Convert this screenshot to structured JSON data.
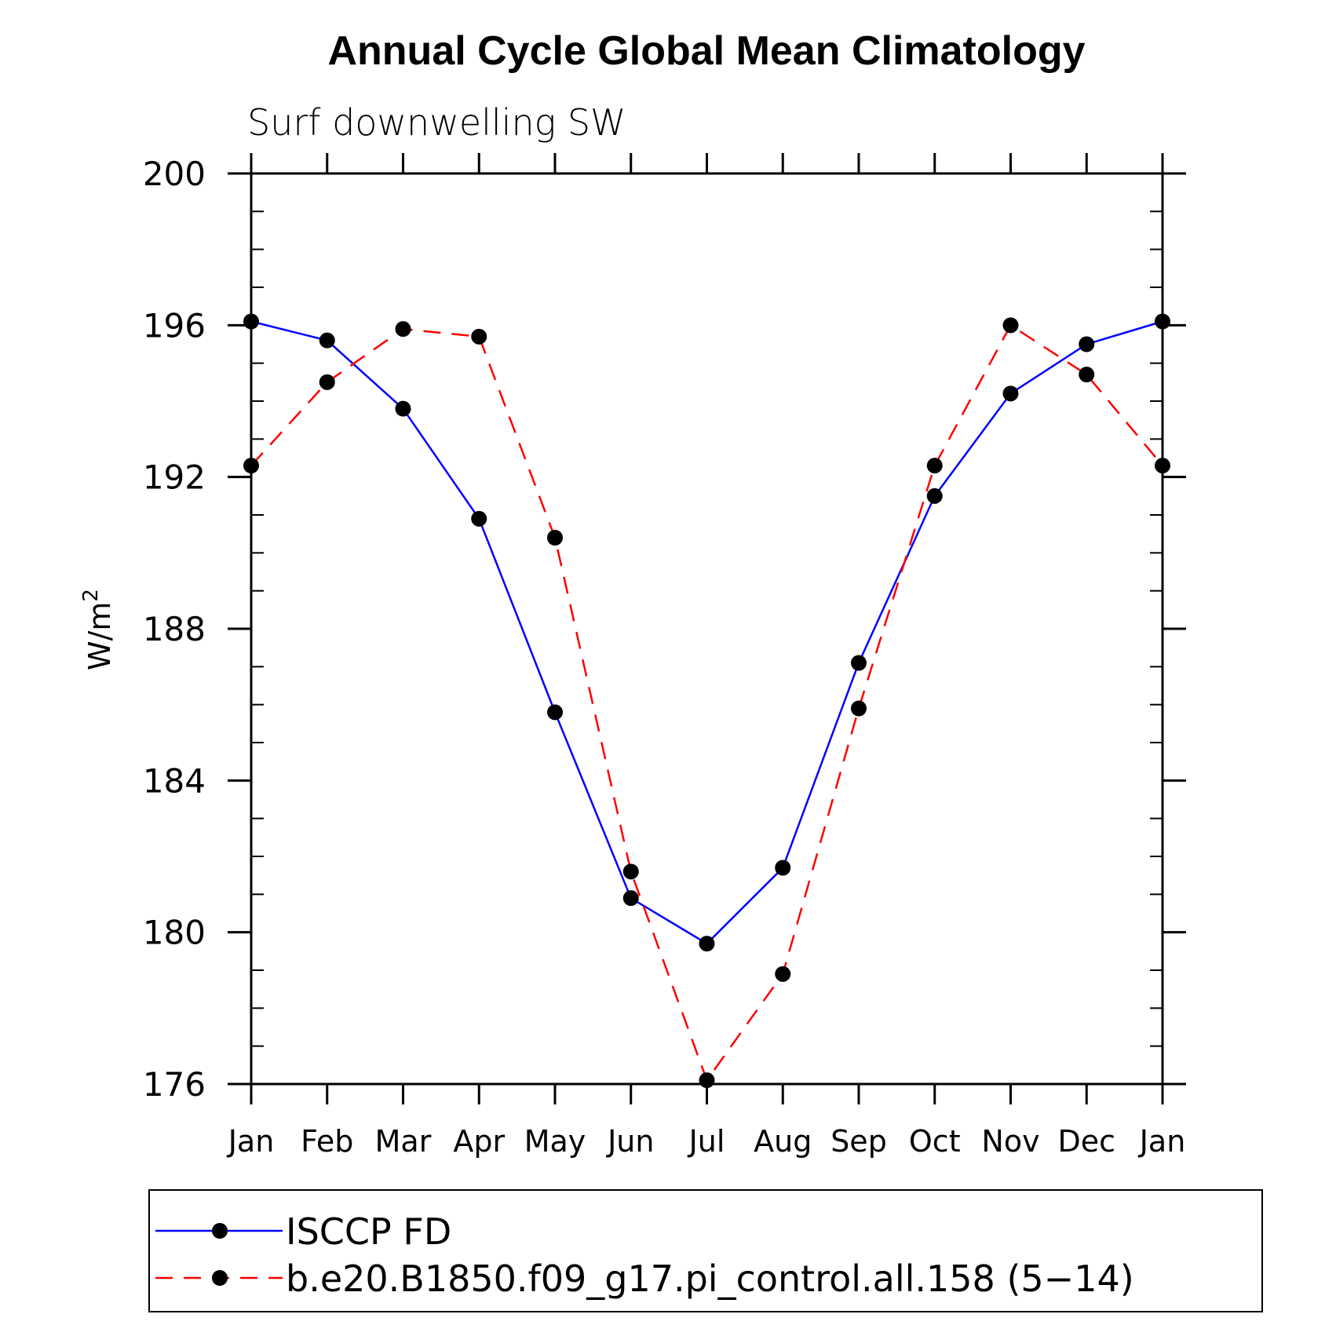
{
  "chart_data": {
    "type": "line",
    "title": "Annual Cycle Global Mean Climatology",
    "subtitle": "Surf downwelling SW",
    "ylabel": "W/m",
    "ylabel_superscript": "2",
    "xlabel": "",
    "categories": [
      "Jan",
      "Feb",
      "Mar",
      "Apr",
      "May",
      "Jun",
      "Jul",
      "Aug",
      "Sep",
      "Oct",
      "Nov",
      "Dec",
      "Jan"
    ],
    "ylim": [
      176,
      200
    ],
    "yticks": [
      176,
      180,
      184,
      188,
      192,
      196,
      200
    ],
    "grid": false,
    "legend_position": "bottom",
    "series": [
      {
        "name": "ISCCP FD",
        "color": "#0000ff",
        "line_style": "solid",
        "marker": "filled-circle",
        "values": [
          196.1,
          195.6,
          193.8,
          190.9,
          185.8,
          180.9,
          179.7,
          181.7,
          187.1,
          191.5,
          194.2,
          195.5,
          196.1
        ]
      },
      {
        "name": "b.e20.B1850.f09_g17.pi_control.all.158 (5−14)",
        "color": "#ff0000",
        "line_style": "dashed",
        "marker": "filled-circle",
        "values": [
          192.3,
          194.5,
          195.9,
          195.7,
          190.4,
          181.6,
          176.1,
          178.9,
          185.9,
          192.3,
          196.0,
          194.7,
          192.3
        ]
      }
    ]
  }
}
